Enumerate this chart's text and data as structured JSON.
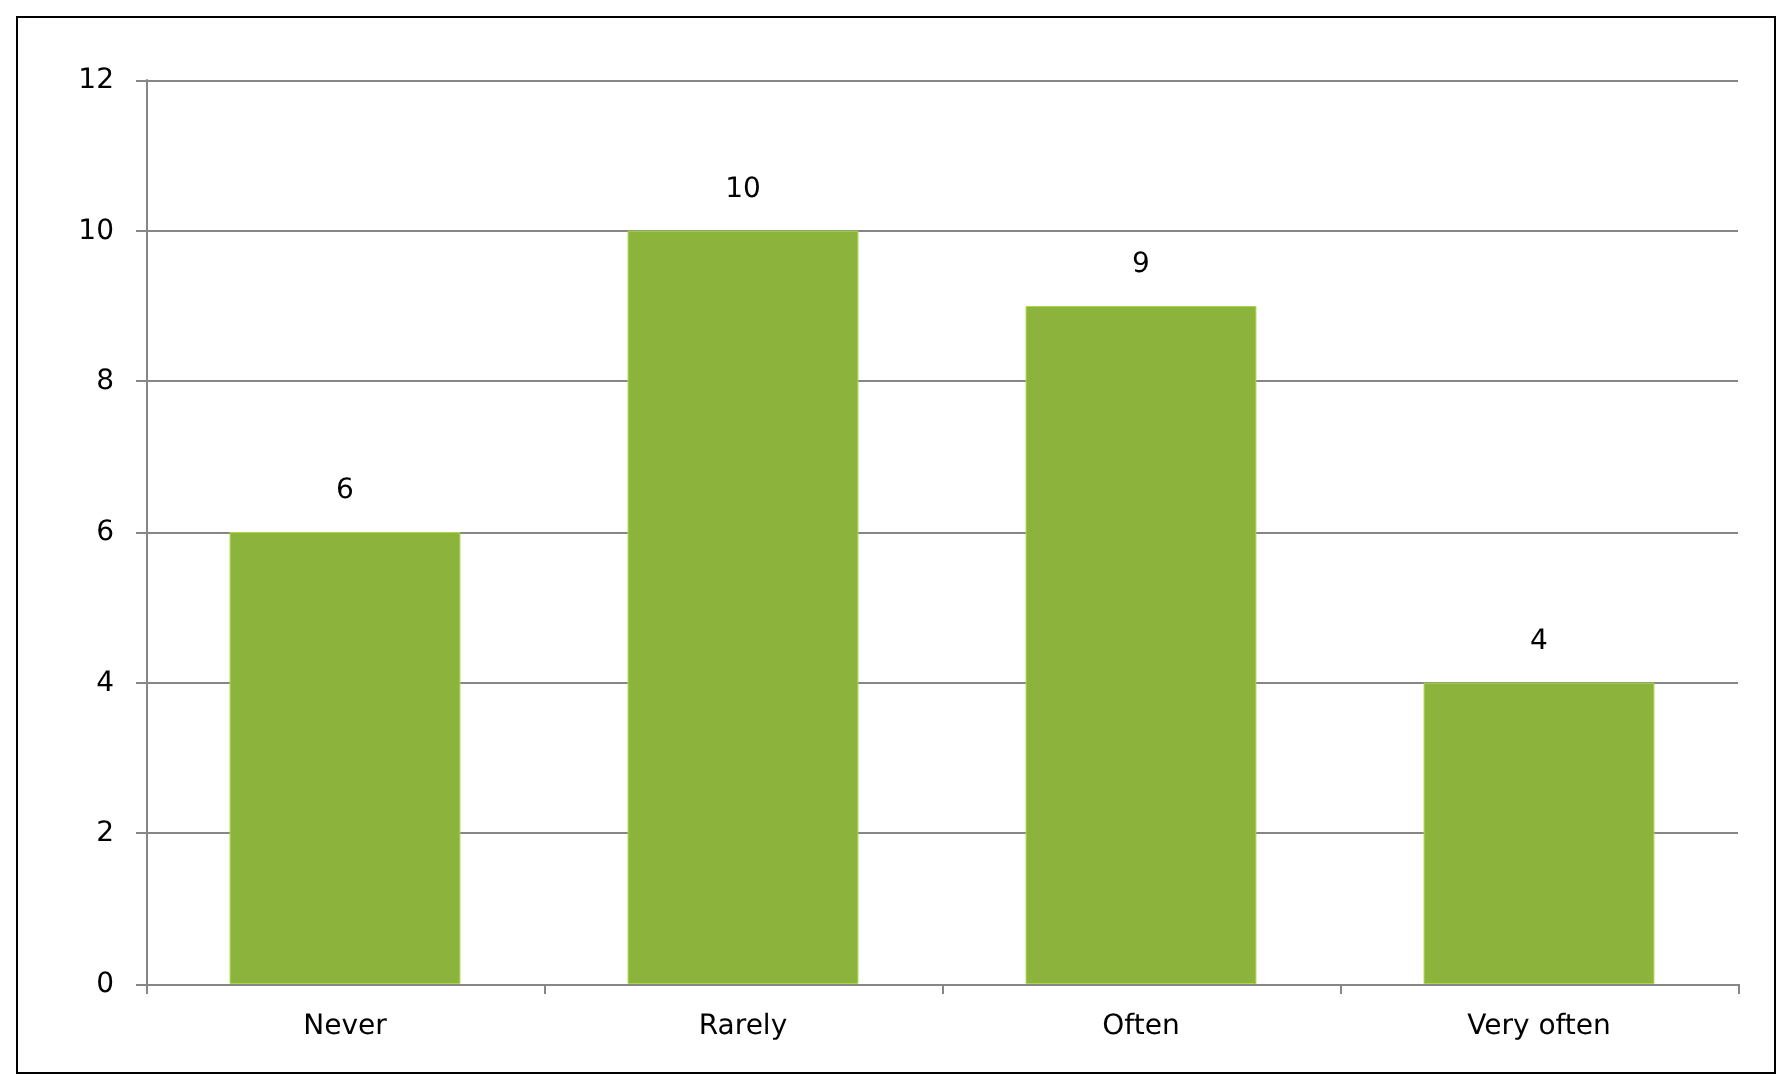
{
  "chart_data": {
    "type": "bar",
    "categories": [
      "Never",
      "Rarely",
      "Often",
      "Very often"
    ],
    "values": [
      6,
      10,
      9,
      4
    ],
    "color": "#8cb43c",
    "ylim": [
      0,
      12
    ],
    "yticks": [
      0,
      2,
      4,
      6,
      8,
      10,
      12
    ],
    "grid": "y",
    "data_labels": true
  }
}
